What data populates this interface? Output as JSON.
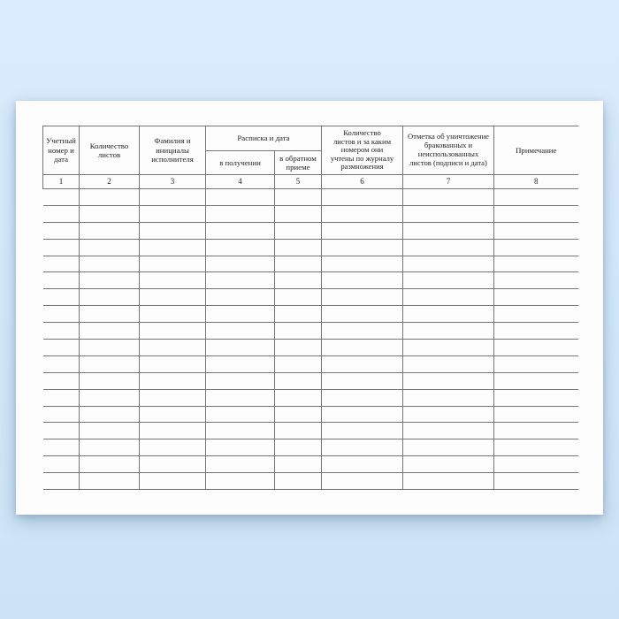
{
  "document": {
    "kind": "scanned blank journal form page",
    "language": "ru"
  },
  "palette": {
    "background_top": "#d9ecfd",
    "background_bottom": "#cde2f5",
    "paper": "#fdfdfd",
    "grid_line": "#757575",
    "text": "#1f1f1f"
  },
  "table": {
    "group_header": "Расписка и дата",
    "columns": [
      {
        "num": "1",
        "label": "Учетный\nномер и\nдата"
      },
      {
        "num": "2",
        "label": "Количество\nлистов"
      },
      {
        "num": "3",
        "label": "Фамилия и\nинициалы\nисполнителя"
      },
      {
        "num": "4",
        "label": "в получении"
      },
      {
        "num": "5",
        "label": "в обратном\nприеме"
      },
      {
        "num": "6",
        "label": "Количество\nлистов и за каким\nномером они\nучтены по журналу\nразмножения"
      },
      {
        "num": "7",
        "label": "Отметка об уничтожение\nбракованных и\nнеиспользованных\nлистов (подписи и дата)"
      },
      {
        "num": "8",
        "label": "Примечание"
      }
    ],
    "body_row_count": 18
  }
}
